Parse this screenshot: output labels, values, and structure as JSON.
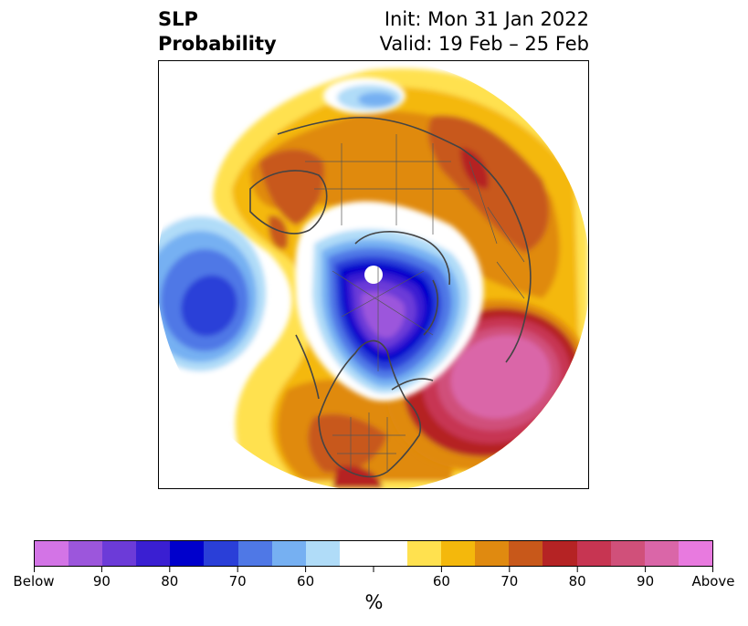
{
  "title": {
    "left_line1": "SLP",
    "left_line2": "Probability",
    "right_line1": "Init: Mon 31 Jan 2022",
    "right_line2": "Valid: 19 Feb – 25 Feb"
  },
  "colorbar": {
    "colors": [
      "#d374e6",
      "#9c56dc",
      "#6c3bd8",
      "#3a1fd2",
      "#0000cc",
      "#2a3fd8",
      "#4f78e6",
      "#76b0f2",
      "#b0dcf8",
      "#ffffff",
      "#ffffff",
      "#ffe14f",
      "#f4b80c",
      "#e08a10",
      "#c8581a",
      "#b52324",
      "#c73552",
      "#d0507a",
      "#da66a8",
      "#e87adf"
    ],
    "labels": [
      "Below",
      "90",
      "80",
      "70",
      "60",
      "",
      "60",
      "70",
      "80",
      "90",
      "Above"
    ],
    "unit": "%"
  },
  "map": {
    "land_color": "#ffffff",
    "coastline_color": "#444444"
  }
}
